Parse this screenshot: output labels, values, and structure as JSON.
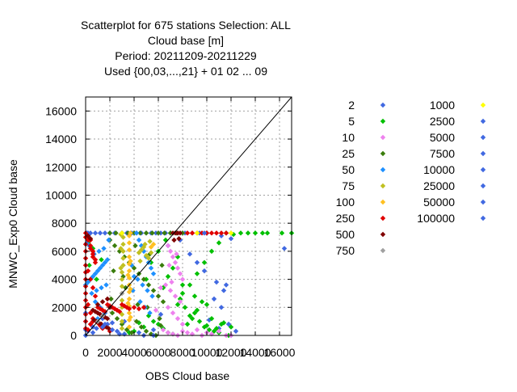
{
  "chart_data": {
    "type": "scatter",
    "title_lines": [
      "Scatterplot for  675 stations Selection: ALL",
      "Cloud base [m]",
      "Period: 20211209-20211229",
      "Used {00,03,...,21} + 01 02 ... 09"
    ],
    "xlabel": "OBS Cloud base",
    "ylabel": "MNWC_Exp0 Cloud base",
    "xlim": [
      0,
      17000
    ],
    "ylim": [
      0,
      17000
    ],
    "xticks": [
      0,
      2000,
      4000,
      6000,
      8000,
      10000,
      12000,
      14000,
      16000
    ],
    "yticks": [
      0,
      2000,
      4000,
      6000,
      8000,
      10000,
      12000,
      14000,
      16000
    ],
    "grid": true,
    "diagonal": true,
    "legend_position": "right",
    "colors": {
      "2": "#4169e1",
      "5": "#00c000",
      "10": "#ee82ee",
      "25": "#3a7d0c",
      "50": "#1e90ff",
      "75": "#c0c020",
      "100": "#ffc020",
      "250": "#e00000",
      "500": "#800000",
      "750": "#a0a0a0",
      "1000": "#ffff00",
      "2500": "#4169e1",
      "5000": "#4169e1",
      "7500": "#4169e1",
      "10000": "#4169e1",
      "25000": "#4169e1",
      "50000": "#4169e1",
      "100000": "#4169e1"
    },
    "series": [
      {
        "name": "2",
        "x": [
          0,
          0,
          0,
          0,
          200,
          400,
          800,
          1200,
          1600,
          2000,
          2400,
          3000,
          3400,
          3800,
          4200,
          4600,
          5000,
          5400,
          5800,
          6200,
          6600,
          7000,
          7600,
          8200,
          8800,
          9400,
          10000,
          11200,
          12000,
          16400,
          10800,
          11400,
          11600,
          11800,
          12400,
          11200,
          10600,
          9800,
          9200,
          8600,
          7800,
          6800,
          5600,
          4400,
          3200,
          2200,
          1400,
          600,
          200,
          100,
          12000,
          11000,
          10200,
          6200,
          2800,
          1800,
          900
        ],
        "y": [
          0,
          400,
          1000,
          1600,
          7300,
          7300,
          7300,
          7300,
          7300,
          7300,
          7300,
          7300,
          7300,
          7300,
          7300,
          7300,
          7300,
          7300,
          7300,
          7300,
          7300,
          7300,
          7300,
          7300,
          7300,
          7300,
          7300,
          7100,
          6900,
          6200,
          3800,
          3200,
          3600,
          800,
          300,
          2000,
          2600,
          4600,
          5200,
          5800,
          6800,
          6400,
          400,
          200,
          1000,
          900,
          1200,
          600,
          300,
          7300,
          0,
          500,
          1100,
          1500,
          100,
          800,
          500
        ]
      },
      {
        "name": "5",
        "x": [
          14000,
          14600,
          15000,
          13400,
          12800,
          12200,
          11600,
          11000,
          10400,
          9800,
          9200,
          8600,
          8000,
          7600,
          7200,
          6800,
          6400,
          9000,
          8800,
          8400,
          9400,
          9800,
          10200,
          10600,
          11000,
          11400,
          11800,
          7600,
          7800,
          8200,
          8600,
          9200,
          9600,
          10000,
          10400,
          10800,
          11200,
          7200,
          6800,
          6400,
          6000,
          5600,
          5200,
          4800,
          4400,
          4000,
          3600,
          3200,
          5000,
          5400,
          6000,
          6600,
          200,
          600,
          900,
          1300,
          300,
          8000,
          9000,
          10000,
          7000,
          12000,
          16200,
          17000
        ],
        "y": [
          7300,
          7300,
          7300,
          7300,
          7300,
          7200,
          7300,
          6600,
          6000,
          5200,
          4400,
          3600,
          3000,
          5600,
          4800,
          4200,
          3400,
          1600,
          1200,
          800,
          1000,
          600,
          400,
          300,
          200,
          900,
          0,
          2200,
          2600,
          2000,
          1400,
          1800,
          2400,
          700,
          1200,
          500,
          800,
          100,
          200,
          500,
          800,
          1000,
          1400,
          600,
          900,
          300,
          200,
          100,
          4000,
          5200,
          6000,
          6800,
          6600,
          6200,
          4000,
          5400,
          5000,
          3600,
          2800,
          2200,
          7300,
          600,
          7300,
          7300
        ]
      },
      {
        "name": "10",
        "x": [
          6800,
          7000,
          7200,
          7400,
          7600,
          7800,
          8000,
          6600,
          7000,
          7400,
          7800,
          6800,
          7200,
          7600,
          8000,
          6400,
          6800,
          7200,
          7600,
          8000,
          8400,
          8800,
          9200,
          9600,
          10000,
          10400,
          11000,
          11600,
          12000,
          6900,
          7500,
          7100,
          5800,
          6000,
          6200
        ],
        "y": [
          6400,
          6000,
          5600,
          5200,
          4800,
          4400,
          4000,
          3600,
          3200,
          2800,
          2400,
          2000,
          1600,
          1200,
          800,
          400,
          200,
          100,
          0,
          300,
          200,
          100,
          400,
          0,
          200,
          100,
          300,
          0,
          0,
          5000,
          5800,
          3800,
          1800,
          2800,
          3400
        ]
      },
      {
        "name": "25",
        "x": [
          2000,
          2400,
          2800,
          3200,
          3600,
          4000,
          4400,
          4800,
          5200,
          5600,
          6000,
          6400,
          2200,
          2600,
          3000,
          3400,
          3800,
          4200,
          4600,
          5000,
          5400,
          5800,
          6200,
          2000,
          2500,
          3000,
          3500,
          4000,
          4500,
          5000,
          5500,
          6000,
          6500,
          7000,
          7500,
          8000,
          2300,
          3300,
          4300,
          5300,
          6300,
          2100,
          3100,
          4100,
          5100,
          6100
        ],
        "y": [
          6800,
          6400,
          6000,
          5600,
          5200,
          4800,
          4400,
          4000,
          3600,
          3200,
          2800,
          2400,
          1600,
          1200,
          800,
          400,
          200,
          1000,
          600,
          300,
          100,
          0,
          700,
          7300,
          7300,
          7300,
          7300,
          7300,
          7300,
          7300,
          7300,
          7300,
          7300,
          7300,
          7300,
          7300,
          4600,
          3400,
          2200,
          5800,
          5000,
          2600,
          4200,
          6400,
          2000,
          1200
        ]
      },
      {
        "name": "50",
        "x": [
          0,
          200,
          400,
          600,
          800,
          1000,
          1200,
          1400,
          1600,
          1800,
          500,
          900,
          1300,
          1700,
          700,
          1100,
          1500,
          300,
          100,
          1900,
          4200,
          4400,
          4600,
          4800,
          5000,
          5200,
          5400,
          5600,
          4300,
          4700,
          5100,
          5500,
          4500,
          4900,
          5300,
          3800,
          4000,
          3900,
          800,
          1200,
          1600,
          1000
        ],
        "y": [
          3600,
          3800,
          4000,
          4200,
          4400,
          4600,
          4800,
          5000,
          5200,
          5400,
          3000,
          3200,
          3400,
          3600,
          5800,
          6000,
          6200,
          6400,
          6600,
          6800,
          7300,
          6800,
          6400,
          6000,
          5600,
          5200,
          4800,
          4400,
          4000,
          3600,
          3200,
          2800,
          2400,
          2000,
          1600,
          5000,
          4200,
          3200,
          2400,
          2000,
          1600,
          1200
        ]
      },
      {
        "name": "75",
        "x": [
          3000,
          3000,
          3000,
          3000,
          3000,
          3000,
          3000,
          3000,
          3000,
          3100,
          3100,
          3100,
          3100,
          3100,
          2900,
          2900,
          2900,
          4400,
          4600,
          4800,
          5000,
          5200,
          5400,
          4500,
          4900,
          5300
        ],
        "y": [
          500,
          1000,
          1500,
          2000,
          2500,
          3000,
          3500,
          4000,
          4500,
          5000,
          5500,
          6000,
          6500,
          7000,
          7200,
          6200,
          4800,
          5900,
          6100,
          6300,
          5700,
          5500,
          5900,
          5300,
          6500,
          6700
        ]
      },
      {
        "name": "100",
        "x": [
          3600,
          3600,
          3600,
          3600,
          3600,
          3600,
          3600,
          3600,
          3600,
          3600,
          3600,
          3600,
          3600,
          3600,
          3700,
          3700,
          3700,
          3700,
          3500,
          3500,
          5400,
          5600
        ],
        "y": [
          600,
          1100,
          1600,
          2100,
          2600,
          3100,
          3600,
          4100,
          4600,
          5100,
          5600,
          6100,
          6600,
          7100,
          7300,
          5300,
          3300,
          1300,
          4300,
          2300,
          6300,
          6500
        ]
      },
      {
        "name": "250",
        "x": [
          0,
          0,
          0,
          0,
          0,
          0,
          0,
          0,
          0,
          0,
          0,
          0,
          0,
          0,
          0,
          200,
          400,
          600,
          800,
          200,
          400,
          600,
          800,
          200,
          400,
          600,
          200,
          400,
          600,
          400,
          1000,
          1400,
          1800,
          2200,
          2600,
          3000,
          3400,
          1200,
          1600,
          2000,
          2400,
          2800,
          3200,
          3600,
          4000,
          4400,
          4800,
          1000,
          1200,
          1400,
          600,
          800,
          2000,
          8400,
          8800,
          9200,
          9600,
          10000,
          10400,
          10800,
          11200,
          11600,
          200,
          400,
          600
        ],
        "y": [
          500,
          1000,
          1500,
          2000,
          2500,
          3000,
          3500,
          4000,
          4500,
          5000,
          5500,
          6000,
          6500,
          7000,
          7300,
          7000,
          6400,
          5800,
          5200,
          4600,
          4000,
          3400,
          2800,
          2200,
          1600,
          1000,
          400,
          800,
          1200,
          6800,
          2000,
          1800,
          2200,
          2000,
          1800,
          2200,
          2000,
          1900,
          1700,
          2100,
          1900,
          1700,
          2100,
          1900,
          2000,
          1900,
          2000,
          900,
          700,
          500,
          6000,
          5400,
          300,
          7300,
          7300,
          7300,
          7300,
          7300,
          7300,
          7300,
          7300,
          7300,
          6800,
          6200,
          5600
        ]
      },
      {
        "name": "500",
        "x": [
          600,
          800,
          1000,
          1200,
          1400,
          1600,
          1800,
          700,
          900,
          1100,
          1300,
          1500,
          1700,
          1900,
          2000,
          1000,
          1400,
          1800,
          7200,
          7400,
          7600,
          7800,
          7300,
          7700,
          200,
          400
        ],
        "y": [
          1800,
          1700,
          1600,
          1500,
          1400,
          1300,
          1200,
          1100,
          1000,
          900,
          800,
          700,
          600,
          500,
          2000,
          2200,
          2400,
          2600,
          7300,
          7300,
          7300,
          7300,
          6800,
          6900,
          7100,
          6900
        ]
      },
      {
        "name": "750",
        "x": [
          1000,
          1400,
          3000
        ],
        "y": [
          1000,
          1400,
          3000
        ]
      },
      {
        "name": "1000",
        "x": [
          12000,
          9200,
          3000
        ],
        "y": [
          7300,
          7300,
          7300
        ]
      },
      {
        "name": "2500",
        "x": [
          600,
          1400
        ],
        "y": [
          200,
          600
        ]
      },
      {
        "name": "5000",
        "x": [
          2200,
          9800
        ],
        "y": [
          400,
          7300
        ]
      },
      {
        "name": "7500",
        "x": [
          1600
        ],
        "y": [
          800
        ]
      },
      {
        "name": "10000",
        "x": [
          2600
        ],
        "y": [
          300
        ]
      },
      {
        "name": "25000",
        "x": [
          3200
        ],
        "y": [
          100
        ]
      },
      {
        "name": "50000",
        "x": [
          4800
        ],
        "y": [
          0
        ]
      },
      {
        "name": "100000",
        "x": [
          5600
        ],
        "y": [
          0
        ]
      }
    ]
  }
}
